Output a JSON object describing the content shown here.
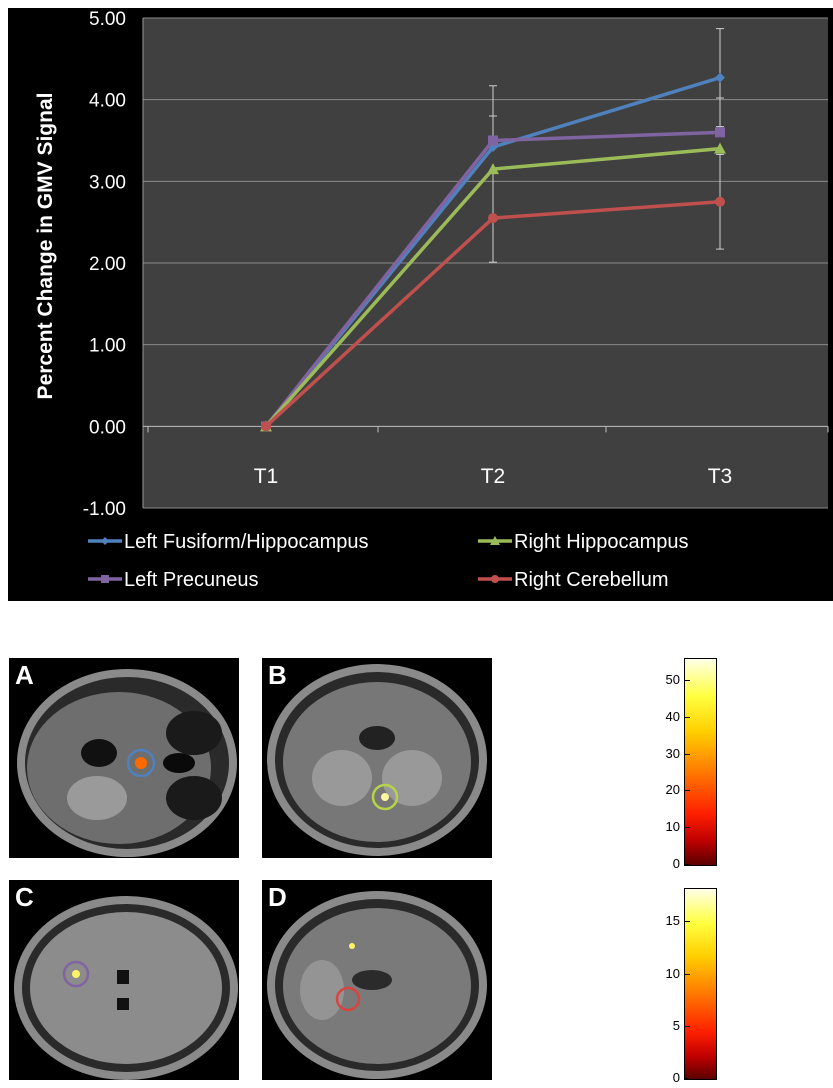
{
  "chart_data": {
    "type": "line",
    "ylabel": "Percent Change in GMV Signal",
    "xlabel": "",
    "categories": [
      "T1",
      "T2",
      "T3"
    ],
    "ylim": [
      -1.0,
      5.0
    ],
    "yticks": [
      "5.00",
      "4.00",
      "3.00",
      "2.00",
      "1.00",
      "0.00",
      "-1.00"
    ],
    "ytick_values": [
      5,
      4,
      3,
      2,
      1,
      0,
      -1
    ],
    "grid": true,
    "legend_position": "bottom",
    "series": [
      {
        "name": "Left Fusiform/Hippocampus",
        "color": "#4f81bd",
        "marker": "diamond",
        "values": [
          0.0,
          3.42,
          4.27
        ],
        "error_high": [
          null,
          4.17,
          4.87
        ],
        "error_low": [
          null,
          null,
          3.67
        ]
      },
      {
        "name": "Right Hippocampus",
        "color": "#9bbb59",
        "marker": "triangle",
        "values": [
          0.0,
          3.15,
          3.4
        ]
      },
      {
        "name": "Left Precuneus",
        "color": "#8064a2",
        "marker": "square",
        "values": [
          0.0,
          3.5,
          3.6
        ],
        "error_high": [
          null,
          3.8,
          4.02
        ]
      },
      {
        "name": "Right Cerebellum",
        "color": "#c0504d",
        "marker": "circle",
        "values": [
          0.0,
          2.55,
          2.75
        ],
        "error_low": [
          null,
          2.01,
          2.17
        ],
        "error_high": [
          null,
          3.1,
          3.33
        ]
      }
    ]
  },
  "brain_panels": [
    {
      "label": "A",
      "circle_color": "#4f81bd"
    },
    {
      "label": "B",
      "circle_color": "#b6d34a"
    },
    {
      "label": "C",
      "circle_color": "#8064a2"
    },
    {
      "label": "D",
      "circle_color": "#d9443f"
    }
  ],
  "colorbars": [
    {
      "ticks": [
        "50",
        "40",
        "30",
        "20",
        "10",
        "0"
      ],
      "tick_values": [
        50,
        40,
        30,
        20,
        10,
        0
      ],
      "max": 56
    },
    {
      "ticks": [
        "15",
        "10",
        "5",
        "0"
      ],
      "tick_values": [
        15,
        10,
        5,
        0
      ],
      "max": 18.2
    }
  ]
}
